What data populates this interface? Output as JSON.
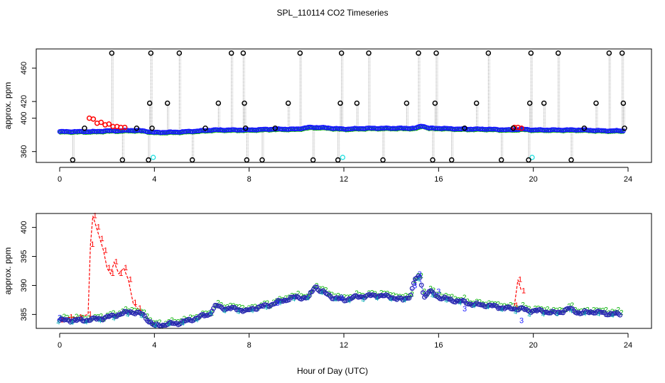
{
  "chart_data": [
    {
      "type": "scatter",
      "title": "SPL_110114  CO2 Timeseries",
      "xlabel": "",
      "ylabel": "approx. ppm",
      "xlim": [
        0,
        24
      ],
      "ylim": [
        347,
        483
      ],
      "x_ticks": [
        "0",
        "4",
        "8",
        "12",
        "16",
        "20",
        "24"
      ],
      "y_ticks": [
        "360",
        "400",
        "420",
        "460"
      ],
      "legend": "none",
      "series": [
        {
          "name": "baseline-blue",
          "color": "#1a1aff",
          "marker": "circle",
          "x_range": [
            0,
            23.8
          ],
          "anchors_x": [
            0,
            0.5,
            1,
            1.5,
            2,
            2.5,
            3,
            3.5,
            4,
            5,
            6,
            6.5,
            7,
            8,
            9,
            10,
            10.5,
            11,
            11.5,
            12,
            13,
            14,
            15,
            15.3,
            15.6,
            16,
            17,
            18,
            19,
            19.5,
            20,
            21,
            22,
            23,
            23.8
          ],
          "anchors_y": [
            384,
            384,
            384,
            384,
            385,
            385,
            385.5,
            385,
            383,
            383.5,
            385,
            386,
            386,
            386,
            387,
            387,
            389,
            389,
            388,
            387,
            388,
            388,
            388,
            391,
            388,
            388,
            387,
            387,
            386,
            387,
            386,
            386,
            386,
            385,
            385
          ]
        },
        {
          "name": "elevated-red",
          "color": "#ff0000",
          "marker": "circle",
          "x": [
            1.25,
            1.42,
            1.58,
            1.75,
            1.92,
            2.08,
            2.25,
            2.42,
            2.58,
            2.75,
            19.2,
            19.35,
            19.5
          ],
          "y": [
            400,
            399,
            394,
            395,
            392,
            393,
            390,
            390,
            389,
            389,
            389,
            389,
            388
          ]
        },
        {
          "name": "cyan",
          "color": "#22e0e0",
          "marker": "circle",
          "x": [
            3.95,
            11.95,
            19.95
          ],
          "y": [
            353,
            353,
            353
          ]
        },
        {
          "name": "black-spikes",
          "color": "#000000",
          "marker": "circle",
          "x": [
            0.55,
            1.05,
            2.2,
            2.65,
            3.25,
            3.75,
            3.8,
            3.85,
            3.9,
            4.55,
            5.05,
            5.6,
            6.15,
            6.7,
            7.25,
            7.75,
            7.8,
            7.85,
            7.9,
            8.55,
            9.1,
            9.65,
            10.15,
            10.7,
            11.75,
            11.85,
            11.9,
            12.55,
            13.05,
            13.65,
            14.65,
            15.15,
            15.75,
            15.85,
            15.9,
            16.55,
            17.1,
            17.6,
            18.1,
            18.65,
            19.15,
            19.8,
            19.85,
            19.9,
            20.45,
            21.05,
            21.6,
            22.15,
            22.65,
            23.2,
            23.75,
            23.8,
            23.85
          ],
          "y": [
            350,
            388,
            478,
            350,
            388,
            350,
            418,
            478,
            388,
            418,
            478,
            350,
            388,
            418,
            478,
            478,
            418,
            388,
            350,
            350,
            388,
            418,
            478,
            350,
            350,
            418,
            478,
            418,
            478,
            350,
            418,
            478,
            350,
            418,
            478,
            350,
            388,
            418,
            478,
            350,
            388,
            350,
            418,
            478,
            418,
            478,
            350,
            388,
            418,
            478,
            478,
            418,
            388
          ]
        }
      ]
    },
    {
      "type": "line",
      "title": "",
      "xlabel": "Hour of Day (UTC)",
      "ylabel": "approx. ppm",
      "xlim": [
        0,
        24
      ],
      "ylim": [
        382.6,
        402.4
      ],
      "x_ticks": [
        "0",
        "4",
        "8",
        "12",
        "16",
        "20",
        "24"
      ],
      "y_ticks": [
        "385",
        "390",
        "395",
        "400"
      ],
      "legend": "none",
      "series": [
        {
          "name": "1",
          "color": "#ff0000",
          "marker": "text:1",
          "x": [
            0,
            0.4,
            0.8,
            1.2,
            1.3,
            1.4,
            1.55,
            1.7,
            1.85,
            2.0,
            2.15,
            2.3,
            2.5,
            2.7,
            2.9,
            3.1,
            3.3,
            19.2,
            19.35,
            19.5
          ],
          "y": [
            384,
            384.5,
            384.5,
            385,
            397,
            402,
            400,
            398,
            396,
            393,
            392,
            394,
            392,
            393,
            391,
            387,
            386,
            386.5,
            391,
            389
          ]
        },
        {
          "name": "2",
          "color": "#00b000",
          "marker": "text:2",
          "x_range": [
            0,
            23.7
          ],
          "offset": 0.3
        },
        {
          "name": "3",
          "color": "#1a1aff",
          "marker": "text:3",
          "x": [
            0,
            9.2,
            11.9,
            15.0,
            15.2,
            16.0,
            17.1,
            19.5
          ],
          "y": [
            384.5,
            387,
            388,
            390,
            392,
            389,
            386,
            384
          ]
        },
        {
          "name": "4",
          "color": "#00b0b0",
          "marker": "text:4",
          "x_range": [
            0,
            23.7
          ]
        },
        {
          "name": "open-circles",
          "color": "#2a2ab0",
          "marker": "circle",
          "x_range": [
            0,
            23.7
          ],
          "anchors_x": [
            0,
            0.5,
            1,
            1.5,
            2,
            2.5,
            3,
            3.5,
            4,
            4.5,
            5,
            5.5,
            6,
            6.3,
            6.6,
            7,
            7.5,
            7.9,
            8.1,
            8.5,
            9,
            9.5,
            10,
            10.5,
            10.8,
            11,
            11.3,
            11.6,
            12,
            12.5,
            13,
            13.5,
            14,
            14.5,
            14.8,
            15,
            15.2,
            15.4,
            15.6,
            15.8,
            16,
            16.5,
            17,
            17.5,
            18,
            18.5,
            19,
            19.5,
            19.8,
            20,
            20.5,
            21,
            21.5,
            22,
            22.5,
            23,
            23.7
          ],
          "anchors_y": [
            384,
            384,
            384,
            384.2,
            384.5,
            385,
            385.5,
            385,
            383,
            383.3,
            383.5,
            384,
            384.7,
            385,
            386.5,
            386,
            386,
            385.5,
            386,
            386.3,
            386.8,
            387.5,
            388,
            387.8,
            390,
            389,
            388.5,
            387.8,
            387.5,
            388,
            388.2,
            388.3,
            388,
            387.5,
            388.2,
            391,
            391.5,
            388,
            389,
            388.5,
            388,
            387.5,
            387.2,
            386.7,
            386.6,
            386.3,
            386,
            386,
            385.6,
            385.7,
            385.5,
            385.2,
            386,
            385.2,
            385.5,
            385.2,
            385
          ]
        }
      ]
    }
  ]
}
